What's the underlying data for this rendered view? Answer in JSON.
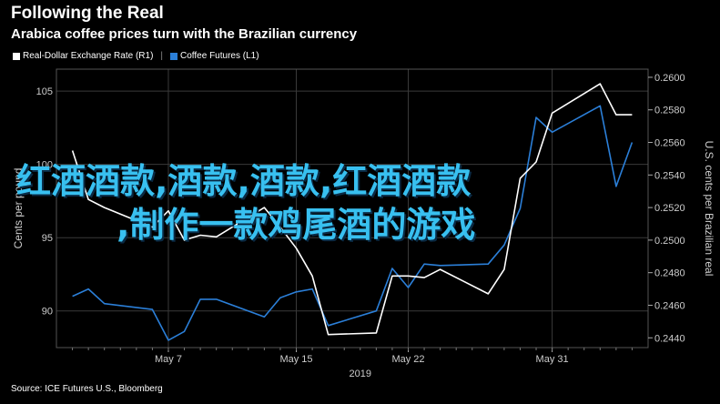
{
  "header": {
    "title": "Following the Real",
    "subtitle": "Arabica coffee prices turn with the Brazilian currency"
  },
  "overlay": {
    "line1": "红酒酒款,酒款,酒款,红酒酒款",
    "line2": ",制作一款鸡尾酒的游戏"
  },
  "source": "Source: ICE Futures U.S., Bloomberg",
  "colors": {
    "background": "#000000",
    "coffee": "#2b7fd8",
    "brl": "#ffffff",
    "grid": "#3a3a3a"
  },
  "chart_data": {
    "type": "line",
    "legend": [
      "Real-Dollar Exchange Rate (R1)",
      "Coffee Futures (L1)"
    ],
    "x_ticks": [
      "May 7",
      "May 15",
      "May 22",
      "May 31"
    ],
    "x_year": "2019",
    "left_axis": {
      "label": "Cents per pound",
      "ticks": [
        90,
        95,
        100,
        105
      ],
      "range": [
        87.5,
        106.5
      ]
    },
    "right_axis": {
      "label": "U.S. cents per Brazilian real",
      "ticks": [
        0.244,
        0.246,
        0.248,
        0.25,
        0.252,
        0.254,
        0.256,
        0.258,
        0.26
      ],
      "range": [
        0.2434,
        0.2605
      ]
    },
    "x": [
      "2019-05-01",
      "2019-05-02",
      "2019-05-03",
      "2019-05-06",
      "2019-05-07",
      "2019-05-08",
      "2019-05-09",
      "2019-05-10",
      "2019-05-13",
      "2019-05-14",
      "2019-05-15",
      "2019-05-16",
      "2019-05-17",
      "2019-05-20",
      "2019-05-21",
      "2019-05-22",
      "2019-05-23",
      "2019-05-24",
      "2019-05-27",
      "2019-05-28",
      "2019-05-29",
      "2019-05-30",
      "2019-05-31",
      "2019-06-03",
      "2019-06-04",
      "2019-06-05"
    ],
    "series": [
      {
        "name": "Coffee Futures (L1)",
        "axis": "left",
        "values": [
          91.0,
          91.5,
          90.5,
          90.1,
          88.0,
          88.6,
          90.8,
          90.8,
          89.6,
          90.9,
          91.3,
          91.5,
          89.0,
          90.0,
          92.9,
          91.6,
          93.2,
          93.1,
          93.2,
          94.5,
          97.0,
          103.2,
          102.2,
          104.0,
          98.5,
          101.5
        ]
      },
      {
        "name": "Real-Dollar Exchange Rate (R1)",
        "axis": "right",
        "values": [
          0.2555,
          0.2525,
          0.252,
          0.2508,
          0.2518,
          0.25,
          0.2503,
          0.2502,
          0.252,
          0.2508,
          0.2495,
          0.2478,
          0.2442,
          0.2443,
          0.2478,
          0.2478,
          0.2477,
          0.2482,
          0.2467,
          0.2482,
          0.2538,
          0.2548,
          0.2578,
          0.2596,
          0.2577,
          0.2577
        ]
      }
    ]
  }
}
